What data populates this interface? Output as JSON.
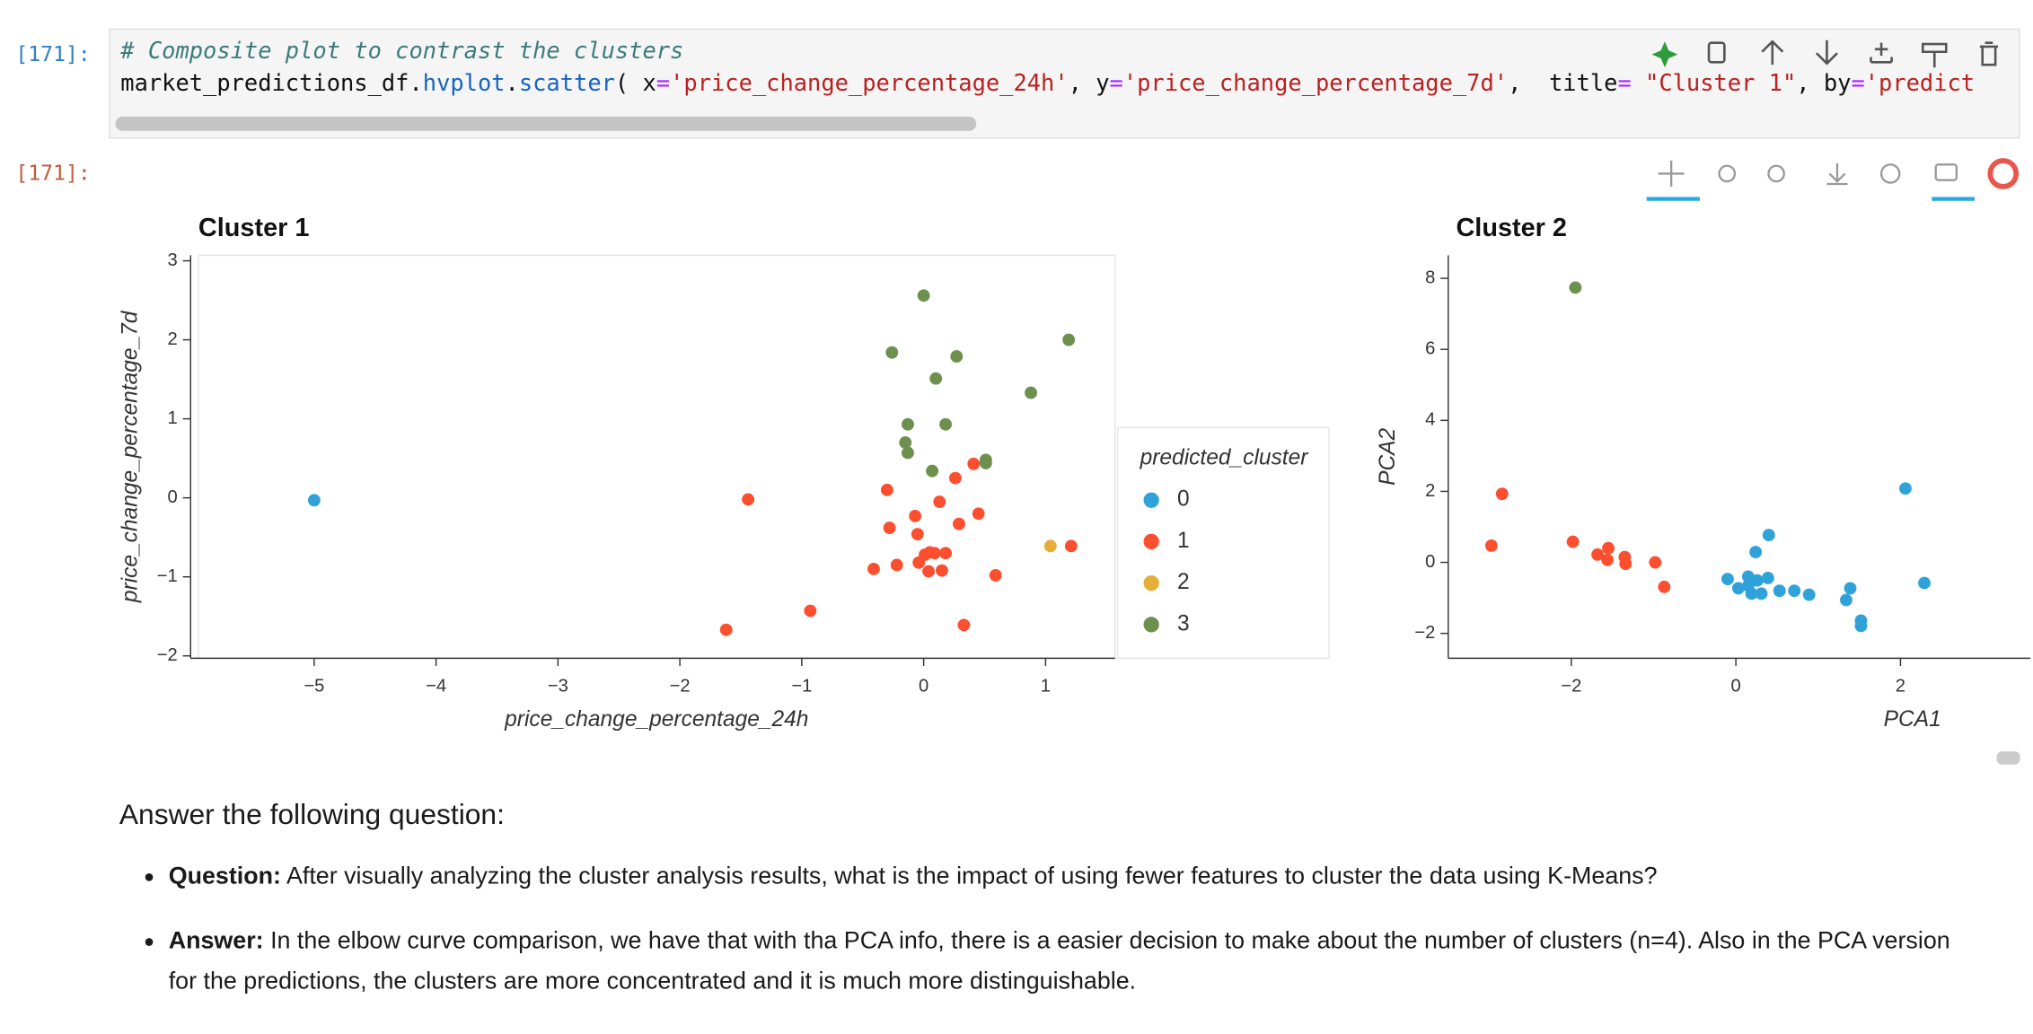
{
  "cells": [
    {
      "prompt": "[171]:",
      "code": [
        "# Composite plot to contrast the clusters",
        [
          "market_predictions_df.",
          "hvplot",
          ".",
          "scatter",
          "( x",
          "=",
          "'price_change_percentage_24h'",
          ", y",
          "=",
          "'price_change_percentage_7d'",
          ",  title",
          "=",
          " \"Cluster 1\"",
          ", by",
          "=",
          "'predict"
        ]
      ]
    },
    {
      "prompt": "[171]:"
    }
  ],
  "chart_data": [
    {
      "type": "scatter",
      "title": "Cluster 1",
      "x_label": "price_change_percentage_24h",
      "y_label": "price_change_percentage_7d",
      "legend_title": "predicted_cluster",
      "legend": "right",
      "xlim": [
        -5.95,
        1.57
      ],
      "ylim": [
        -2.03,
        3.07
      ],
      "xticks": [
        {
          "value": -5,
          "label": "−5"
        },
        {
          "value": -4,
          "label": "−4"
        },
        {
          "value": -3,
          "label": "−3"
        },
        {
          "value": -2,
          "label": "−2"
        },
        {
          "value": -1,
          "label": "−1"
        },
        0,
        1
      ],
      "yticks": [
        {
          "value": -2,
          "label": "−2"
        },
        {
          "value": -1,
          "label": "−1"
        },
        0,
        1,
        2,
        3
      ],
      "series": [
        {
          "name": "0",
          "color": "#30a2da",
          "x": [
            -5.0
          ],
          "y": [
            -0.03
          ]
        },
        {
          "name": "1",
          "color": "#fc4f30",
          "x": [
            -1.44,
            -0.3,
            0.26,
            0.41,
            -0.28,
            -0.07,
            0.13,
            0.45,
            0.29,
            -0.05,
            0.01,
            0.05,
            0.18,
            0.09,
            -0.22,
            -0.41,
            -0.04,
            0.04,
            0.15,
            0.59,
            1.21,
            -0.93,
            -1.62,
            0.33
          ],
          "y": [
            -0.02,
            0.1,
            0.25,
            0.43,
            -0.38,
            -0.23,
            -0.05,
            -0.2,
            -0.33,
            -0.46,
            -0.72,
            -0.69,
            -0.7,
            -0.7,
            -0.85,
            -0.9,
            -0.82,
            -0.93,
            -0.92,
            -0.98,
            -0.61,
            -1.43,
            -1.67,
            -1.61
          ]
        },
        {
          "name": "2",
          "color": "#e5ae38",
          "x": [
            1.04
          ],
          "y": [
            -0.61
          ]
        },
        {
          "name": "3",
          "color": "#6d904f",
          "x": [
            0.0,
            -0.26,
            0.27,
            1.19,
            0.1,
            0.88,
            -0.13,
            0.18,
            -0.15,
            -0.13,
            0.51,
            0.51,
            0.07
          ],
          "y": [
            2.56,
            1.84,
            1.79,
            2.0,
            1.51,
            1.33,
            0.93,
            0.93,
            0.7,
            0.57,
            0.48,
            0.44,
            0.34
          ]
        }
      ]
    },
    {
      "type": "scatter",
      "title": "Cluster 2",
      "x_label": "PCA1",
      "y_label": "PCA2",
      "xlim": [
        -3.4,
        3.61
      ],
      "ylim": [
        -2.7,
        8.65
      ],
      "xticks": [
        {
          "value": -2,
          "label": "−2"
        },
        0,
        2
      ],
      "yticks": [
        {
          "value": -2,
          "label": "−2"
        },
        0,
        2,
        4,
        6,
        8
      ],
      "series": [
        {
          "color": "#30a2da",
          "x": [
            2.06,
            2.29,
            0.4,
            0.24,
            -0.1,
            0.03,
            0.15,
            0.26,
            0.19,
            0.31,
            0.39,
            0.53,
            0.71,
            0.89,
            1.39,
            1.34,
            1.52,
            1.52,
            0.15
          ],
          "y": [
            2.08,
            -0.58,
            0.77,
            0.29,
            -0.47,
            -0.73,
            -0.4,
            -0.51,
            -0.88,
            -0.88,
            -0.44,
            -0.8,
            -0.8,
            -0.91,
            -0.73,
            -1.06,
            -1.64,
            -1.79,
            -0.66
          ]
        },
        {
          "color": "#fc4f30",
          "x": [
            -2.84,
            -2.97,
            -1.98,
            -1.68,
            -1.55,
            -1.56,
            -1.35,
            -1.34,
            -0.98,
            -0.87
          ],
          "y": [
            1.93,
            0.47,
            0.58,
            0.22,
            0.4,
            0.07,
            0.15,
            -0.04,
            0.0,
            -0.69
          ]
        },
        {
          "color": "#6d904f",
          "x": [
            -1.95
          ],
          "y": [
            7.74
          ]
        }
      ]
    }
  ],
  "markdown": {
    "heading": "Answer the following question:",
    "items": [
      {
        "label": "Question:",
        "text": " After visually analyzing the cluster analysis results, what is the impact of using fewer features to cluster the data using K-Means?"
      },
      {
        "label": "Answer:",
        "text": " In the elbow curve comparison, we have that with tha PCA info, there is a easier decision to make about the number of clusters (n=4). Also in the PCA version for the predictions, the clusters are more concentrated and it is much more distinguishable."
      }
    ]
  }
}
